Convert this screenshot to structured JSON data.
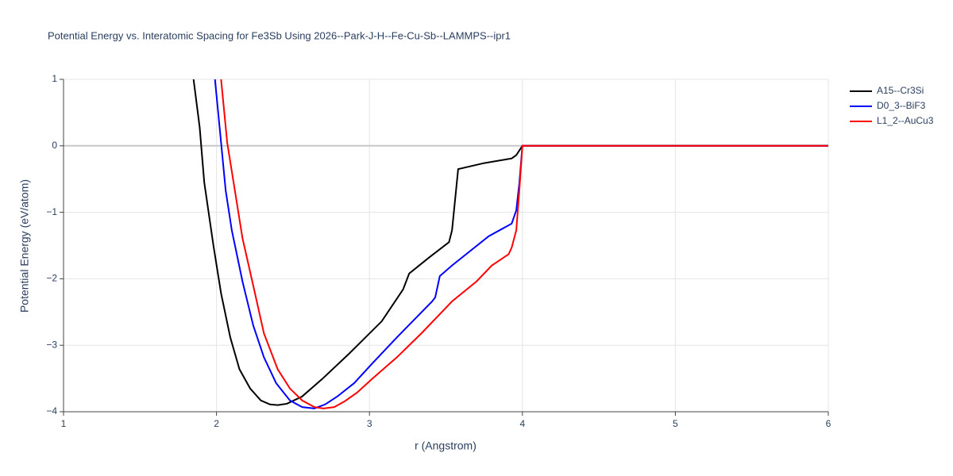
{
  "chart_data": {
    "type": "line",
    "title": "Potential Energy vs. Interatomic Spacing for Fe3Sb Using 2026--Park-J-H--Fe-Cu-Sb--LAMMPS--ipr1",
    "x_label": "r (Angstrom)",
    "y_label": "Potential Energy (eV/atom)",
    "xlim": [
      1,
      6
    ],
    "ylim": [
      -4,
      1
    ],
    "xticks": [
      1,
      2,
      3,
      4,
      5,
      6
    ],
    "yticks": [
      {
        "value": -4,
        "label": "−4"
      },
      {
        "value": -3,
        "label": "−3"
      },
      {
        "value": -2,
        "label": "−2"
      },
      {
        "value": -1,
        "label": "−1"
      },
      0,
      1
    ],
    "grid": true,
    "legend": "right",
    "series": [
      {
        "name": "A15--Cr3Si",
        "color": "#000000",
        "x": [
          1.85,
          1.89,
          1.92,
          1.98,
          2.03,
          2.09,
          2.15,
          2.22,
          2.29,
          2.35,
          2.4,
          2.46,
          2.56,
          2.69,
          2.87,
          3.08,
          3.22,
          3.26,
          3.39,
          3.52,
          3.54,
          3.58,
          3.75,
          3.93,
          3.96,
          4.0,
          6
        ],
        "values": [
          1,
          0.28,
          -0.55,
          -1.5,
          -2.22,
          -2.88,
          -3.36,
          -3.65,
          -3.83,
          -3.89,
          -3.9,
          -3.88,
          -3.77,
          -3.51,
          -3.12,
          -2.64,
          -2.16,
          -1.92,
          -1.68,
          -1.45,
          -1.27,
          -0.35,
          -0.26,
          -0.19,
          -0.14,
          0,
          0
        ]
      },
      {
        "name": "D0_3--BiF3",
        "color": "#0000ff",
        "x": [
          1.99,
          2.03,
          2.06,
          2.1,
          2.17,
          2.24,
          2.31,
          2.39,
          2.48,
          2.56,
          2.64,
          2.71,
          2.79,
          2.9,
          3.02,
          3.18,
          3.41,
          3.43,
          3.46,
          3.54,
          3.78,
          3.93,
          3.96,
          3.98,
          4.0,
          6
        ],
        "values": [
          1,
          0.05,
          -0.67,
          -1.27,
          -2.04,
          -2.7,
          -3.18,
          -3.57,
          -3.83,
          -3.93,
          -3.95,
          -3.89,
          -3.77,
          -3.57,
          -3.27,
          -2.88,
          -2.34,
          -2.28,
          -1.96,
          -1.8,
          -1.36,
          -1.17,
          -0.97,
          -0.56,
          0,
          0
        ]
      },
      {
        "name": "L1_2--AuCu3",
        "color": "#ff0000",
        "x": [
          2.03,
          2.07,
          2.12,
          2.17,
          2.24,
          2.31,
          2.4,
          2.48,
          2.56,
          2.64,
          2.7,
          2.77,
          2.84,
          2.92,
          3.02,
          3.18,
          3.34,
          3.54,
          3.7,
          3.8,
          3.91,
          3.93,
          3.96,
          3.98,
          4.0,
          6
        ],
        "values": [
          1,
          0.05,
          -0.67,
          -1.39,
          -2.1,
          -2.82,
          -3.36,
          -3.65,
          -3.83,
          -3.93,
          -3.95,
          -3.93,
          -3.84,
          -3.71,
          -3.5,
          -3.18,
          -2.82,
          -2.34,
          -2.04,
          -1.8,
          -1.63,
          -1.53,
          -1.27,
          -0.67,
          0,
          0
        ]
      }
    ]
  }
}
